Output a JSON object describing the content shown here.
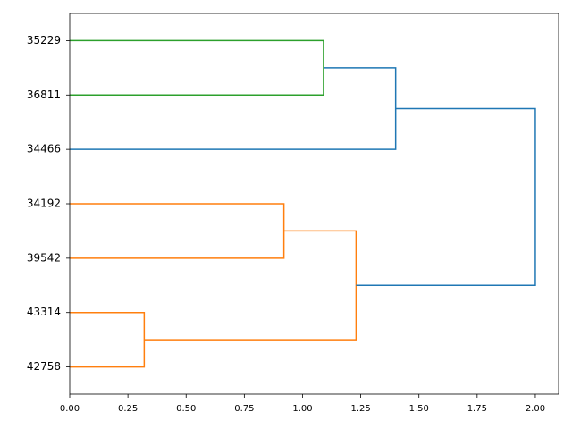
{
  "chart_data": {
    "type": "dendrogram",
    "orientation": "horizontal",
    "leaves": [
      "35229",
      "36811",
      "34466",
      "34192",
      "39542",
      "43314",
      "42758"
    ],
    "links": [
      {
        "children": [
          0,
          1
        ],
        "height": 1.09,
        "color": "#2ca02c"
      },
      {
        "children": [
          7,
          2
        ],
        "height": 1.4,
        "color": "#1f77b4"
      },
      {
        "children": [
          3,
          4
        ],
        "height": 0.92,
        "color": "#ff7f0e"
      },
      {
        "children": [
          5,
          6
        ],
        "height": 0.32,
        "color": "#ff7f0e"
      },
      {
        "children": [
          9,
          10
        ],
        "height": 1.23,
        "color": "#ff7f0e"
      },
      {
        "children": [
          8,
          11
        ],
        "height": 2.0,
        "color": "#1f77b4"
      }
    ],
    "xlim": [
      0,
      2.1
    ],
    "xticks": [
      {
        "value": 0,
        "label": "0.00"
      },
      {
        "value": 0.25,
        "label": "0.25"
      },
      {
        "value": 0.5,
        "label": "0.50"
      },
      {
        "value": 0.75,
        "label": "0.75"
      },
      {
        "value": 1,
        "label": "1.00"
      },
      {
        "value": 1.25,
        "label": "1.25"
      },
      {
        "value": 1.5,
        "label": "1.50"
      },
      {
        "value": 1.75,
        "label": "1.75"
      },
      {
        "value": 2,
        "label": "2.00"
      }
    ]
  }
}
